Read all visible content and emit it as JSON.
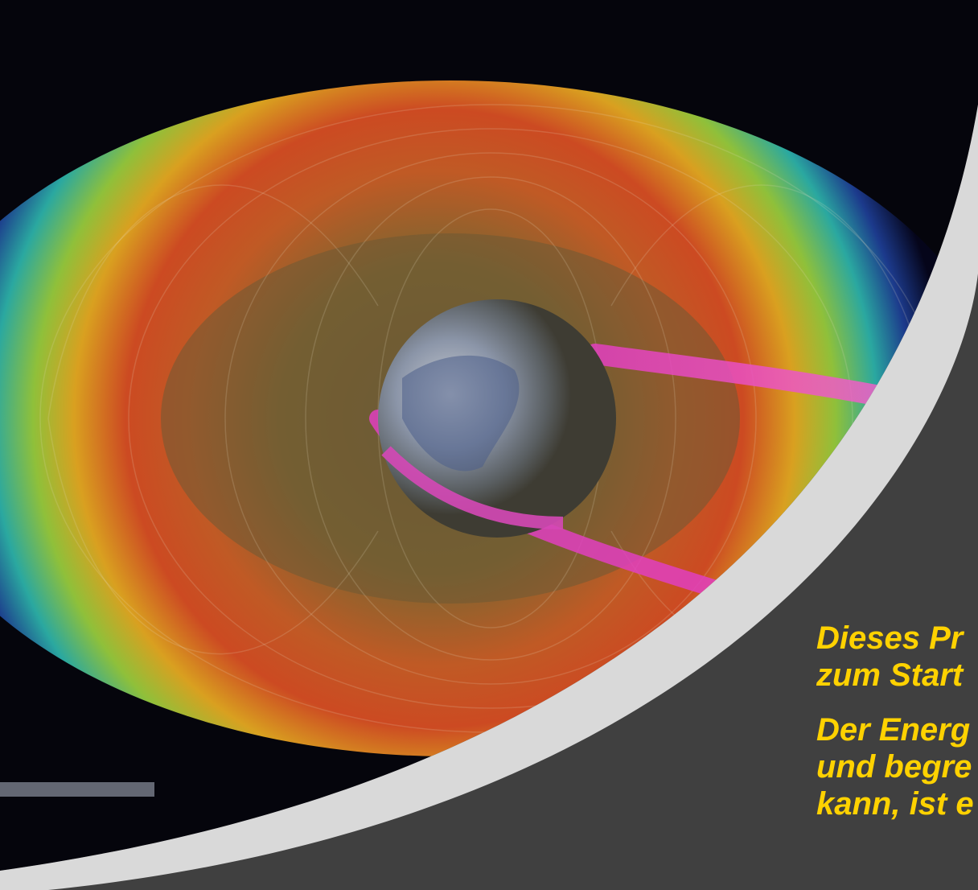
{
  "slide": {
    "paragraph_1": {
      "line_1": "Dieses Pr",
      "line_2": "zum Start"
    },
    "paragraph_2": {
      "line_1": "Der Energ",
      "line_2": "und begre",
      "line_3": "kann, ist e"
    },
    "caption_strip": "",
    "colors": {
      "background": "#404040",
      "accent_arc": "#d9d9d9",
      "text": "#ffd200"
    }
  }
}
